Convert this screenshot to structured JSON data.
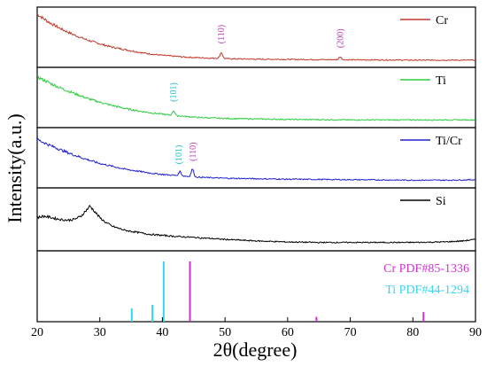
{
  "chart_data": {
    "type": "line",
    "xlabel": "2θ(degree)",
    "ylabel": "Intensity(a.u.)",
    "xlim": [
      20,
      90
    ],
    "xticks": [
      20,
      30,
      40,
      50,
      60,
      70,
      80,
      90
    ],
    "grid": false,
    "legend_position": "top-right of each panel",
    "panels": [
      {
        "series": [
          {
            "name": "Cr",
            "color": "#c0392b",
            "points": [
              [
                20,
                1.0
              ],
              [
                22,
                0.82
              ],
              [
                24,
                0.68
              ],
              [
                26,
                0.56
              ],
              [
                28,
                0.46
              ],
              [
                30,
                0.38
              ],
              [
                32,
                0.31
              ],
              [
                34,
                0.26
              ],
              [
                36,
                0.21
              ],
              [
                38,
                0.17
              ],
              [
                40,
                0.14
              ],
              [
                42,
                0.12
              ],
              [
                44,
                0.1
              ],
              [
                46,
                0.09
              ],
              [
                48,
                0.08
              ],
              [
                49.5,
                0.08
              ],
              [
                50,
                0.07
              ],
              [
                55,
                0.06
              ],
              [
                60,
                0.055
              ],
              [
                65,
                0.05
              ],
              [
                68,
                0.05
              ],
              [
                70,
                0.045
              ],
              [
                75,
                0.045
              ],
              [
                80,
                0.04
              ],
              [
                85,
                0.04
              ],
              [
                90,
                0.04
              ]
            ],
            "peaks": [
              {
                "x": 49.4,
                "height": 0.12
              },
              {
                "x": 68.4,
                "height": 0.06
              }
            ]
          }
        ],
        "annotations": [
          {
            "x": 49.4,
            "text": "(110)",
            "color": "#b03ab3"
          },
          {
            "x": 68.4,
            "text": "(200)",
            "color": "#b03ab3"
          }
        ]
      },
      {
        "series": [
          {
            "name": "Ti",
            "color": "#2ecc40",
            "points": [
              [
                20,
                0.95
              ],
              [
                22,
                0.82
              ],
              [
                24,
                0.7
              ],
              [
                26,
                0.6
              ],
              [
                28,
                0.5
              ],
              [
                30,
                0.42
              ],
              [
                32,
                0.35
              ],
              [
                34,
                0.29
              ],
              [
                36,
                0.24
              ],
              [
                38,
                0.2
              ],
              [
                40,
                0.17
              ],
              [
                42,
                0.14
              ],
              [
                44,
                0.12
              ],
              [
                46,
                0.1
              ],
              [
                50,
                0.08
              ],
              [
                55,
                0.07
              ],
              [
                60,
                0.06
              ],
              [
                70,
                0.05
              ],
              [
                80,
                0.05
              ],
              [
                90,
                0.05
              ]
            ],
            "peaks": [
              {
                "x": 41.8,
                "height": 0.1
              }
            ]
          }
        ],
        "annotations": [
          {
            "x": 41.8,
            "text": "(101)",
            "color": "#1fb8c8"
          }
        ]
      },
      {
        "series": [
          {
            "name": "Ti/Cr",
            "color": "#2222cc",
            "points": [
              [
                20,
                0.9
              ],
              [
                22,
                0.78
              ],
              [
                24,
                0.67
              ],
              [
                26,
                0.57
              ],
              [
                28,
                0.48
              ],
              [
                30,
                0.4
              ],
              [
                32,
                0.34
              ],
              [
                34,
                0.28
              ],
              [
                36,
                0.24
              ],
              [
                38,
                0.2
              ],
              [
                40,
                0.17
              ],
              [
                42,
                0.15
              ],
              [
                44,
                0.13
              ],
              [
                46,
                0.11
              ],
              [
                50,
                0.09
              ],
              [
                55,
                0.08
              ],
              [
                60,
                0.07
              ],
              [
                70,
                0.06
              ],
              [
                80,
                0.05
              ],
              [
                86,
                0.05
              ],
              [
                90,
                0.06
              ]
            ],
            "peaks": [
              {
                "x": 42.8,
                "height": 0.09
              },
              {
                "x": 44.8,
                "height": 0.16
              }
            ]
          }
        ],
        "annotations": [
          {
            "x": 42.6,
            "text": "(101)",
            "color": "#1fb8c8"
          },
          {
            "x": 44.9,
            "text": "(110)",
            "color": "#b03ab3"
          }
        ]
      },
      {
        "series": [
          {
            "name": "Si",
            "color": "#000000",
            "points": [
              [
                20,
                0.55
              ],
              [
                21,
                0.58
              ],
              [
                22,
                0.56
              ],
              [
                23,
                0.53
              ],
              [
                24,
                0.51
              ],
              [
                25,
                0.5
              ],
              [
                26,
                0.52
              ],
              [
                27,
                0.58
              ],
              [
                28,
                0.72
              ],
              [
                28.4,
                0.78
              ],
              [
                29,
                0.7
              ],
              [
                30,
                0.55
              ],
              [
                31,
                0.45
              ],
              [
                32,
                0.38
              ],
              [
                34,
                0.3
              ],
              [
                36,
                0.26
              ],
              [
                38,
                0.22
              ],
              [
                40,
                0.2
              ],
              [
                42,
                0.18
              ],
              [
                45,
                0.16
              ],
              [
                50,
                0.12
              ],
              [
                55,
                0.09
              ],
              [
                60,
                0.07
              ],
              [
                65,
                0.06
              ],
              [
                70,
                0.06
              ],
              [
                75,
                0.06
              ],
              [
                80,
                0.06
              ],
              [
                85,
                0.07
              ],
              [
                88,
                0.09
              ],
              [
                90,
                0.12
              ]
            ],
            "peaks": []
          }
        ],
        "annotations": []
      },
      {
        "reference_lines": [
          {
            "name": "Cr PDF#85-1336",
            "color": "#cc33cc",
            "lines": [
              {
                "x": 44.4,
                "intensity": 100
              },
              {
                "x": 64.6,
                "intensity": 8
              },
              {
                "x": 81.7,
                "intensity": 16
              }
            ]
          },
          {
            "name": "Ti PDF#44-1294",
            "color": "#33d6f0",
            "lines": [
              {
                "x": 35.1,
                "intensity": 22
              },
              {
                "x": 38.4,
                "intensity": 28
              },
              {
                "x": 40.2,
                "intensity": 100
              }
            ]
          }
        ]
      }
    ]
  }
}
